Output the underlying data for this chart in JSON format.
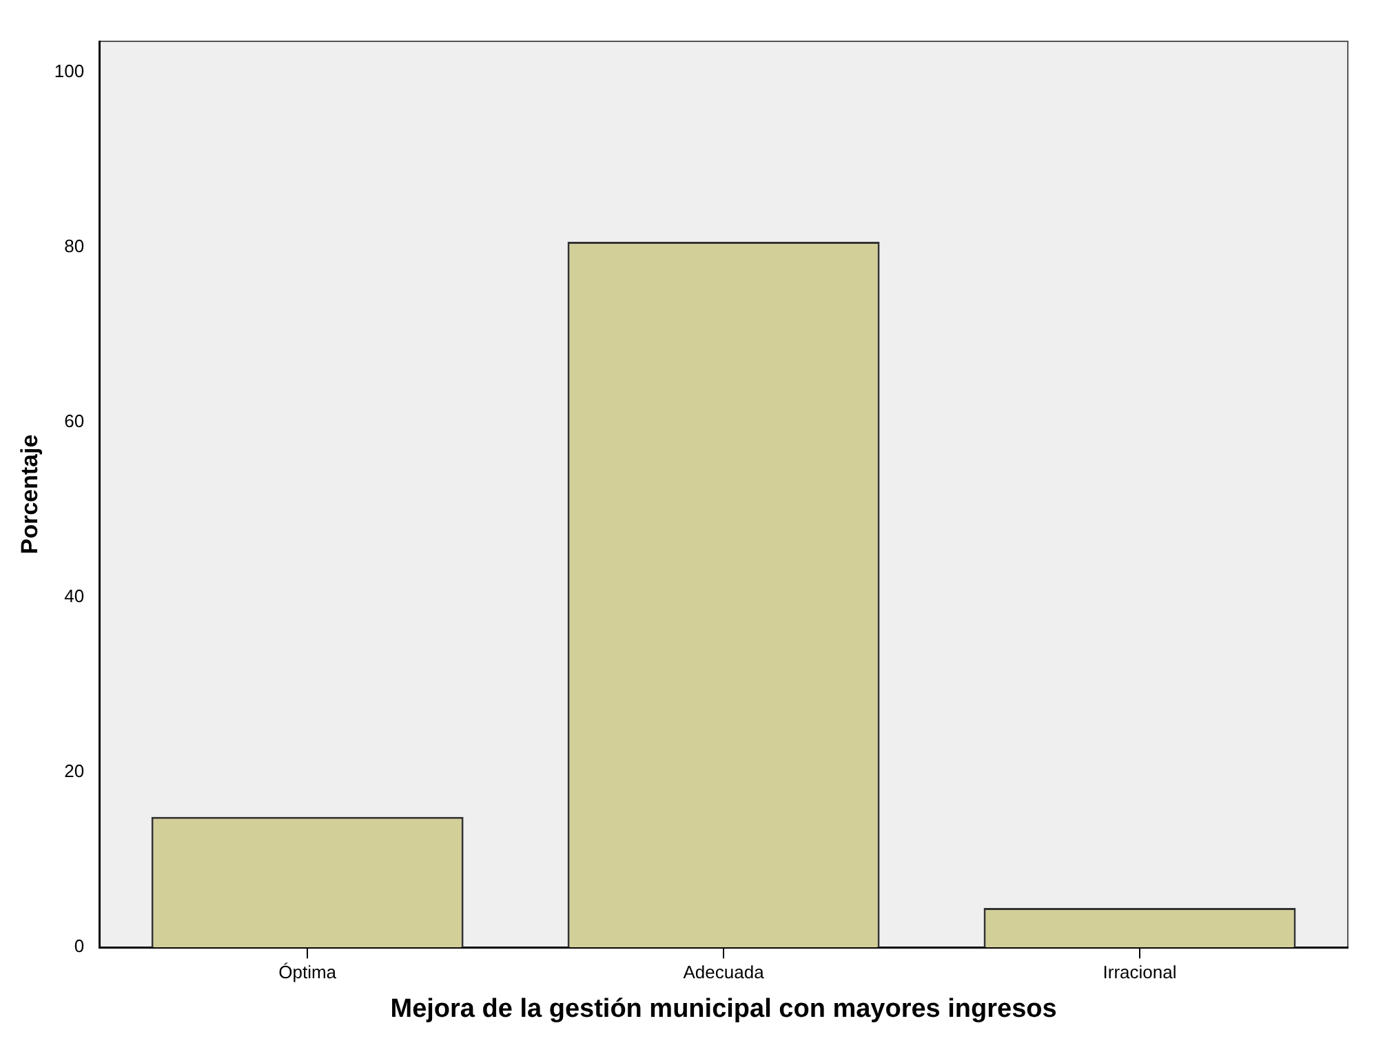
{
  "chart_data": {
    "type": "bar",
    "xlabel": "Mejora de la gestión municipal con mayores ingresos",
    "ylabel": "Porcentaje",
    "categories": [
      "Óptima",
      "Adecuada",
      "Irracional"
    ],
    "values": [
      14.9,
      80.6,
      4.5
    ],
    "color": "#d3cf98",
    "ylim": [
      0,
      103.5
    ],
    "yticks": [
      0,
      20,
      40,
      60,
      80,
      100
    ],
    "grid": false,
    "legend": false
  }
}
